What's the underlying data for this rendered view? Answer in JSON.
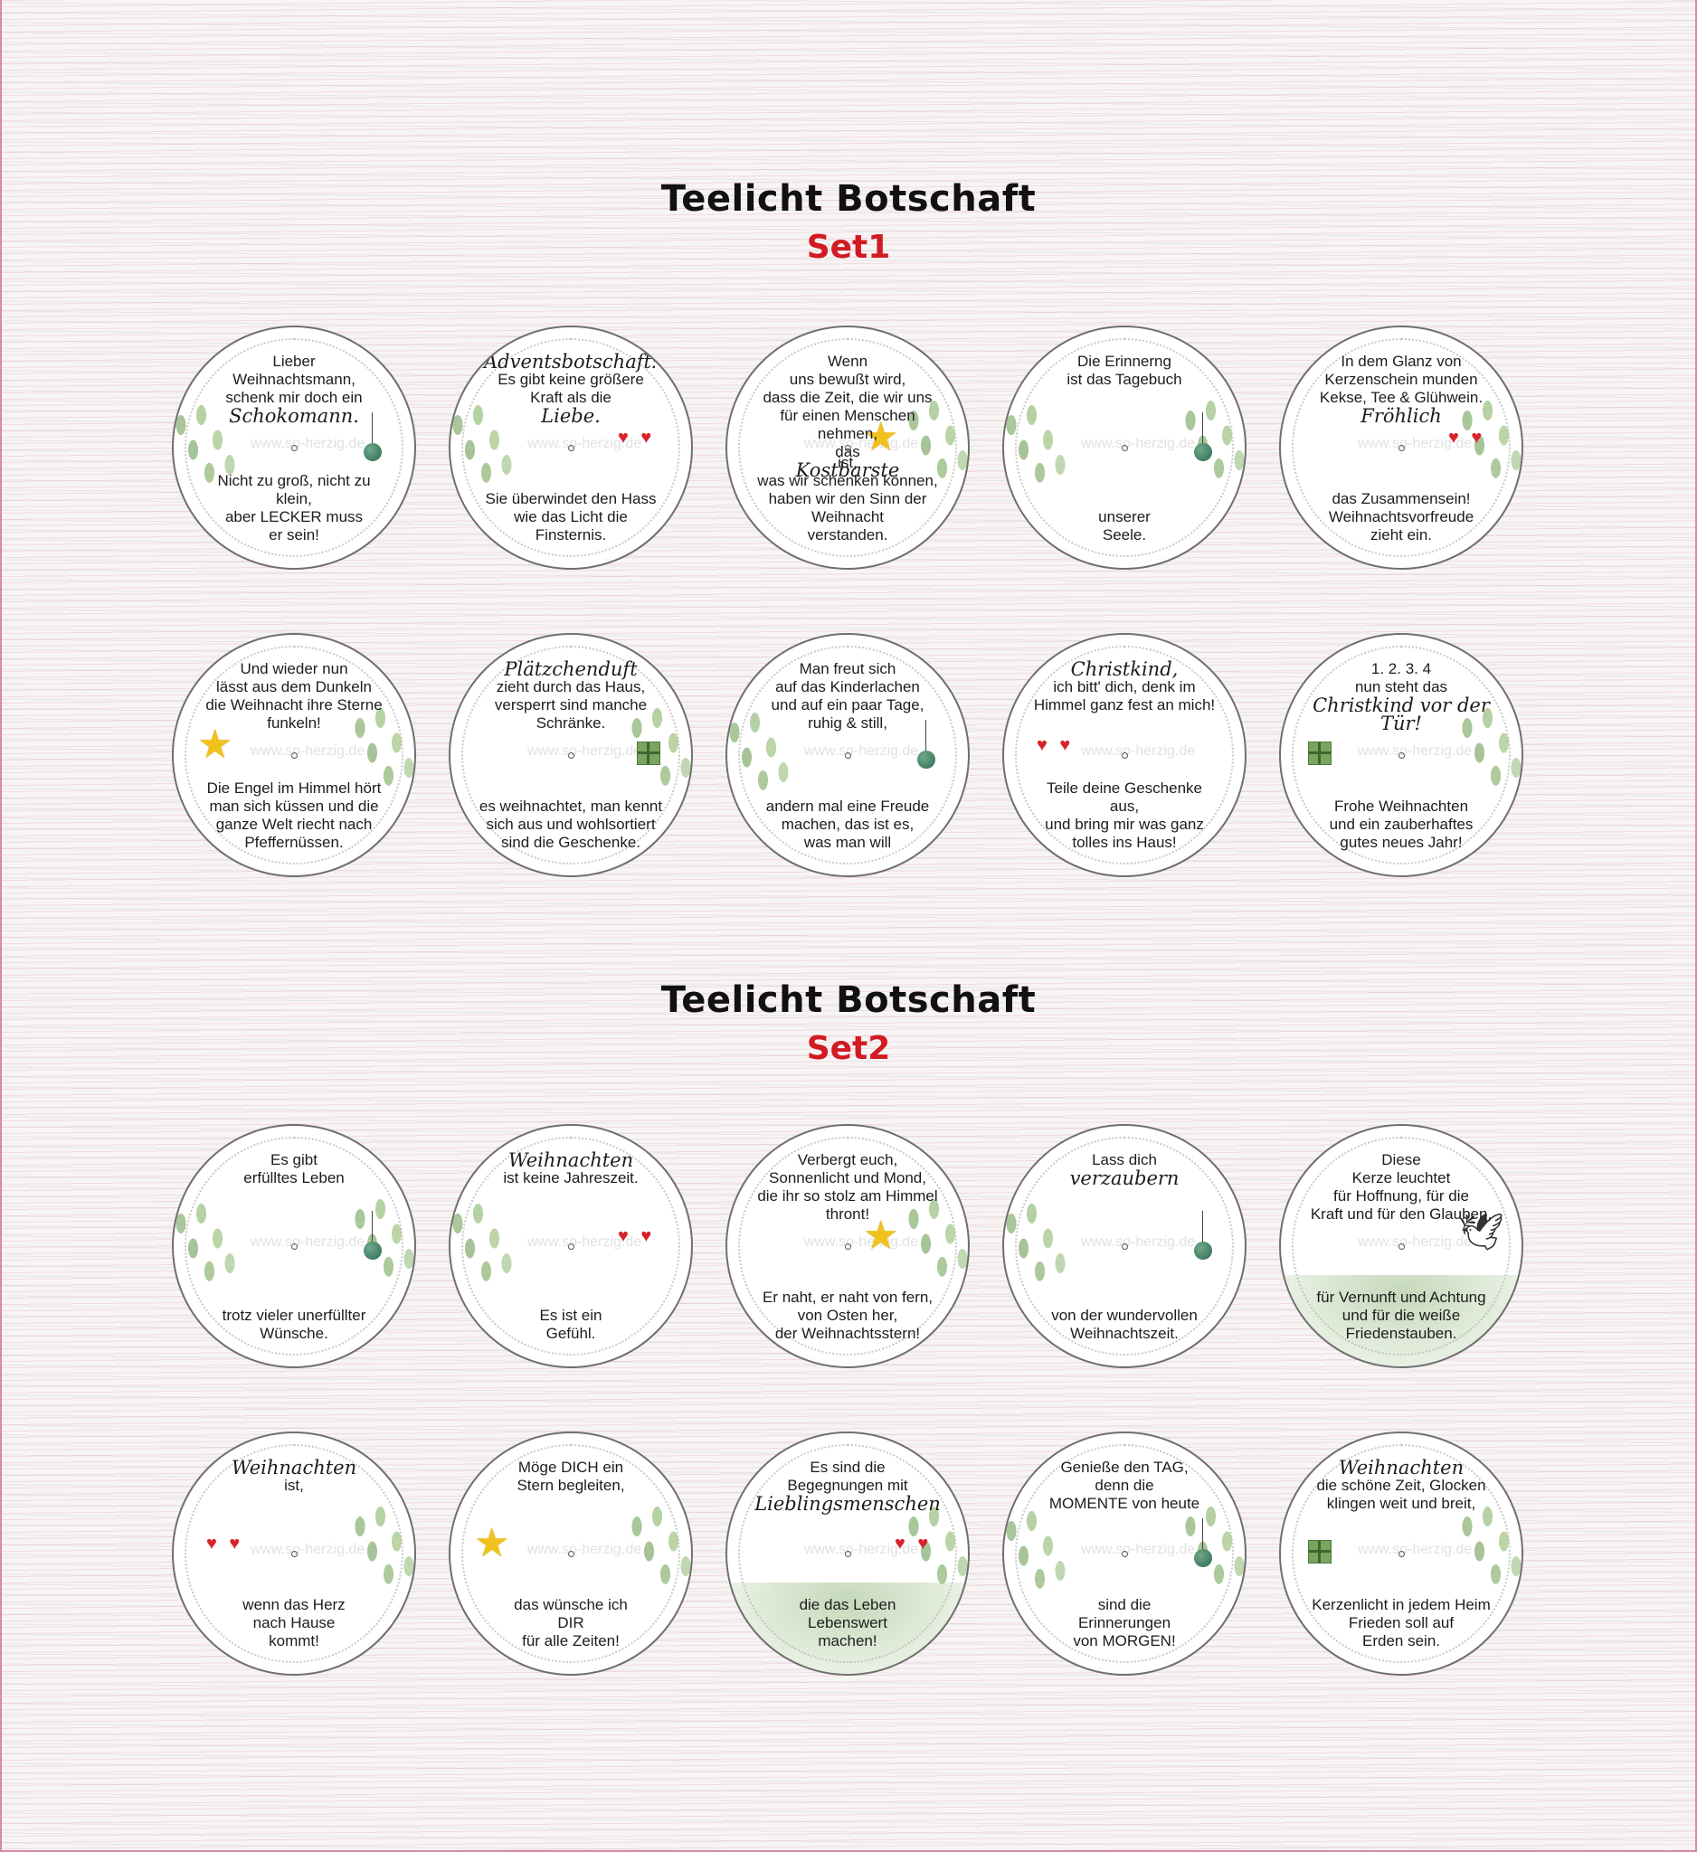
{
  "colors": {
    "heading": "#111111",
    "set_label": "#d11a22",
    "heart": "#d8232a",
    "star": "#f1c21b",
    "leaf": "#8fb478",
    "ornament": "#2e6a52",
    "border": "#6f6f6f"
  },
  "watermark": "www.so-herzig.de",
  "sets": [
    {
      "title": "Teelicht Botschaft",
      "label": "Set1",
      "rows": [
        [
          {
            "top": "Lieber\nWeihnachtsmann,\nschenk mir doch ein",
            "script": "Schokomann.",
            "bottom": "Nicht zu groß, nicht zu klein,\naber LECKER muss\ner sein!",
            "deco": [
              "leaf-l",
              "ornament"
            ]
          },
          {
            "script_top": "Adventsbotschaft:",
            "top": "Es gibt keine größere\nKraft als die",
            "script": "Liebe.",
            "bottom": "Sie überwindet den Hass\nwie das Licht die\nFinsternis.",
            "deco": [
              "leaf-l",
              "hearts"
            ]
          },
          {
            "top": "Wenn\nuns bewußt wird,\ndass die Zeit, die wir uns\nfür einen Menschen nehmen,\ndas",
            "script": "Kostbarste",
            "bottom": "ist,\nwas wir schenken können,\nhaben wir den Sinn der\nWeihnacht\nverstanden.",
            "deco": [
              "star",
              "leaf-r"
            ]
          },
          {
            "top": "Die Erinnerng\nist das Tagebuch",
            "script": "",
            "bottom": "unserer\nSeele.",
            "deco": [
              "leaf-l",
              "leaf-r",
              "ornament"
            ]
          },
          {
            "top": "In dem Glanz von\nKerzenschein munden\nKekse, Tee & Glühwein.",
            "script": "Fröhlich",
            "bottom": "das Zusammensein!\nWeihnachtsvorfreude\nzieht ein.",
            "deco": [
              "leaf-r",
              "hearts"
            ]
          }
        ],
        [
          {
            "top": "Und wieder nun\nlässt aus dem Dunkeln\ndie Weihnacht ihre Sterne\nfunkeln!",
            "script": "",
            "bottom": "Die Engel im Himmel hört\nman sich küssen und die\nganze Welt riecht nach\nPfeffernüssen.",
            "deco": [
              "star",
              "leaf-r"
            ]
          },
          {
            "script_top": "Plätzchenduft",
            "top": "zieht durch das Haus,\nversperrt sind manche\nSchränke.",
            "script": "",
            "bottom": "es weihnachtet, man kennt\nsich aus und wohlsortiert\nsind die Geschenke.",
            "deco": [
              "gift",
              "leaf-r"
            ]
          },
          {
            "top": "Man freut sich\nauf das Kinderlachen\nund auf ein paar Tage,\nruhig & still,",
            "script": "",
            "bottom": "andern mal eine Freude\nmachen, das ist es,\nwas man will",
            "deco": [
              "leaf-l",
              "ornament"
            ]
          },
          {
            "script_top": "Christkind,",
            "top": "ich bitt' dich, denk im\nHimmel ganz fest an mich!",
            "script": "",
            "bottom": "Teile deine Geschenke aus,\nund bring mir was ganz\ntolles ins Haus!",
            "deco": [
              "hearts"
            ]
          },
          {
            "top": "1. 2. 3. 4\nnun steht das",
            "script": "Christkind vor der Tür!",
            "bottom": "Frohe Weihnachten\nund ein zauberhaftes\ngutes neues Jahr!",
            "deco": [
              "gift",
              "leaf-r"
            ]
          }
        ]
      ]
    },
    {
      "title": "Teelicht Botschaft",
      "label": "Set2",
      "rows": [
        [
          {
            "top": "Es gibt\nerfülltes Leben",
            "script": "",
            "bottom": "trotz vieler unerfüllter\nWünsche.",
            "deco": [
              "leaf-l",
              "leaf-r",
              "ornament"
            ]
          },
          {
            "script_top": "Weihnachten",
            "top": "ist keine Jahreszeit.",
            "script": "",
            "bottom": "Es ist ein\nGefühl.",
            "deco": [
              "leaf-l",
              "hearts"
            ]
          },
          {
            "top": "Verbergt euch,\nSonnenlicht und Mond,\ndie ihr so stolz am Himmel\nthront!",
            "script": "",
            "bottom": "Er naht, er naht von fern,\nvon Osten her,\nder Weihnachtsstern!",
            "deco": [
              "star",
              "leaf-r"
            ]
          },
          {
            "top": "Lass dich",
            "script": "verzaubern",
            "bottom": "von der wundervollen\nWeihnachtszeit.",
            "deco": [
              "leaf-l",
              "ornament"
            ]
          },
          {
            "top": "Diese\nKerze leuchtet\nfür Hoffnung, für die\nKraft und für den Glauben,",
            "script": "",
            "bottom": "für Vernunft und Achtung\nund für die weiße\nFriedenstauben.",
            "deco": [
              "dove",
              "green"
            ]
          }
        ],
        [
          {
            "script_top": "Weihnachten",
            "top": "ist,",
            "script": "",
            "bottom": "wenn das Herz\nnach Hause\nkommt!",
            "deco": [
              "hearts",
              "leaf-r"
            ]
          },
          {
            "top": "Möge DICH ein\nStern begleiten,",
            "script": "",
            "bottom": "das wünsche ich\nDIR\nfür alle Zeiten!",
            "deco": [
              "star",
              "leaf-r"
            ]
          },
          {
            "top": "Es sind die\nBegegnungen mit",
            "script": "Lieblingsmenschen",
            "bottom": "die das Leben\nLebenswert\nmachen!",
            "deco": [
              "hearts",
              "leaf-r",
              "green"
            ]
          },
          {
            "top": "Genieße den TAG,\ndenn die\nMOMENTE von heute",
            "script": "",
            "bottom": "sind die\nErinnerungen\nvon MORGEN!",
            "deco": [
              "leaf-l",
              "leaf-r",
              "ornament"
            ]
          },
          {
            "script_top": "Weihnachten",
            "top": "die schöne Zeit, Glocken\nklingen weit und breit,",
            "script": "",
            "bottom": "Kerzenlicht in jedem Heim\nFrieden soll auf\nErden sein.",
            "deco": [
              "gift",
              "leaf-r"
            ]
          }
        ]
      ]
    }
  ]
}
